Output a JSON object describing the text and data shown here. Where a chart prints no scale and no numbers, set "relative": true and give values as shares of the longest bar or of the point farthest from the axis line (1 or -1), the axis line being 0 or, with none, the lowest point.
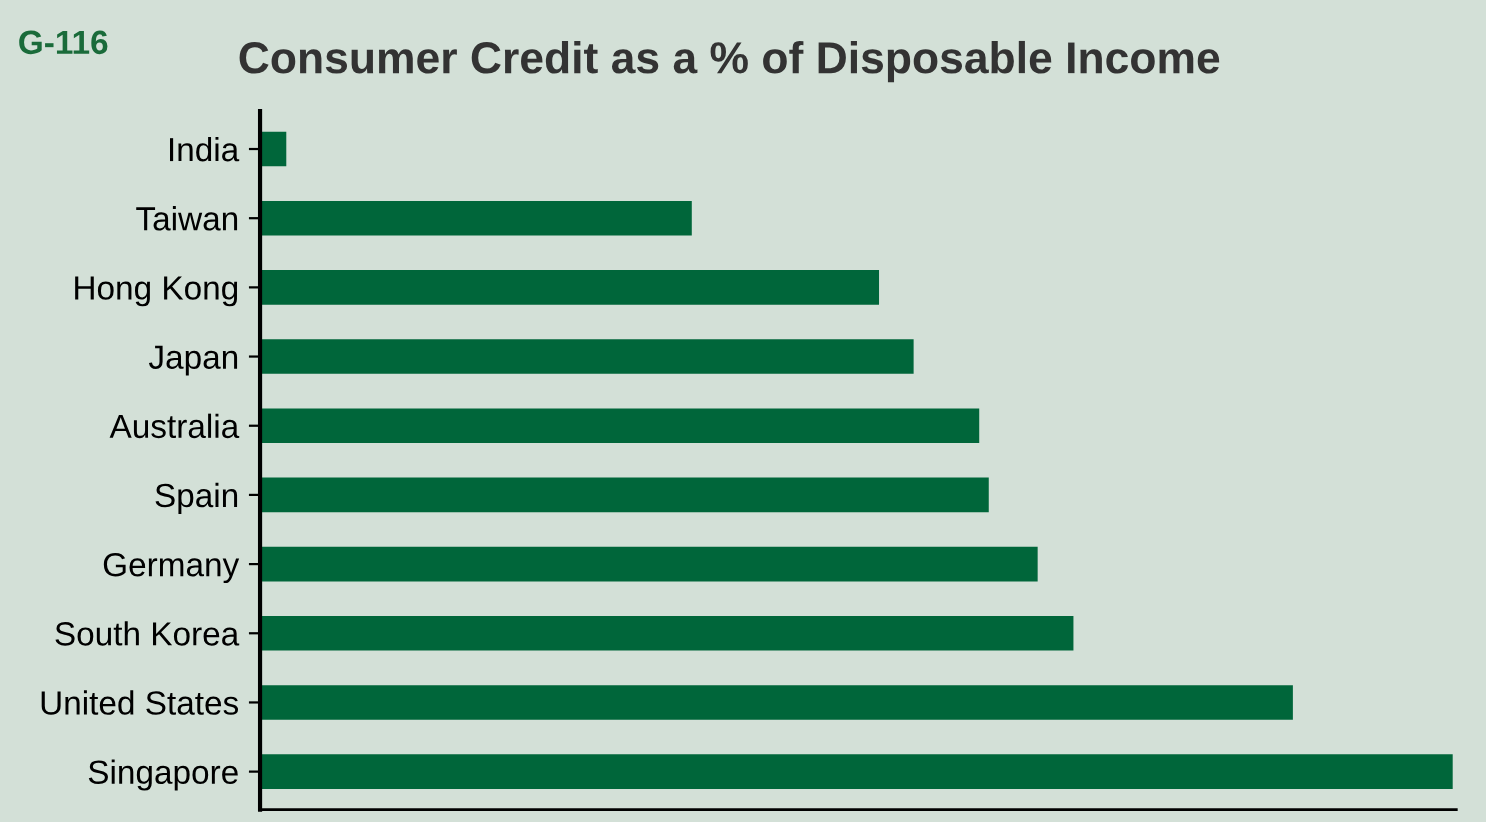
{
  "chart_data": {
    "type": "bar",
    "orientation": "horizontal",
    "relative": true,
    "title": "Consumer Credit as a % of Disposable Income",
    "annotations": [
      "G-116"
    ],
    "categories": [
      "India",
      "Taiwan",
      "Hong Kong",
      "Japan",
      "Australia",
      "Spain",
      "Germany",
      "South Korea",
      "United States",
      "Singapore"
    ],
    "values": [
      0.022,
      0.362,
      0.519,
      0.548,
      0.603,
      0.611,
      0.652,
      0.682,
      0.866,
      1
    ],
    "color": "#00663a",
    "grid": false,
    "legend": false
  }
}
